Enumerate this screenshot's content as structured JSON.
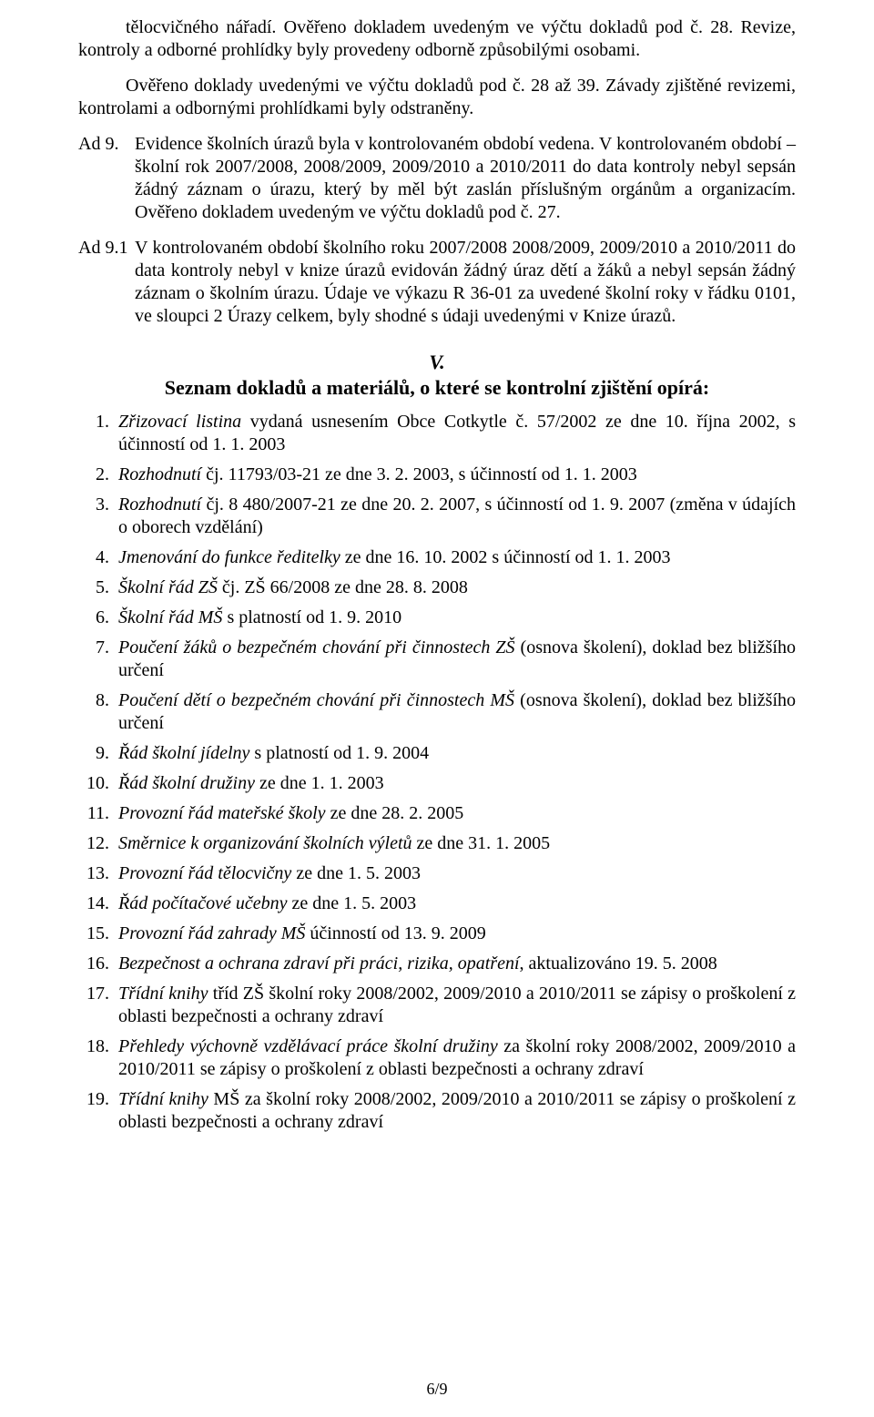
{
  "intro": {
    "p1": "tělocvičného nářadí. Ověřeno dokladem uvedeným ve výčtu dokladů pod č. 28. Revize, kontroly a odborné prohlídky byly provedeny odborně způsobilými osobami.",
    "p2": "Ověřeno doklady uvedenými ve výčtu dokladů pod č. 28 až 39. Závady zjištěné revizemi, kontrolami a odbornými prohlídkami byly odstraněny."
  },
  "ad9": {
    "label": "Ad 9.",
    "text": "Evidence školních úrazů byla v kontrolovaném období vedena. V kontrolovaném období – školní rok 2007/2008, 2008/2009, 2009/2010 a 2010/2011 do data kontroly nebyl sepsán žádný záznam o úrazu, který by měl být zaslán příslušným orgánům a organizacím. Ověřeno dokladem uvedeným ve výčtu dokladů pod č. 27."
  },
  "ad91": {
    "label": "Ad 9.1",
    "text": "V kontrolovaném období školního roku 2007/2008 2008/2009, 2009/2010 a 2010/2011 do data kontroly nebyl v knize úrazů evidován žádný úraz dětí a žáků a nebyl sepsán žádný záznam o školním úrazu. Údaje ve výkazu R 36-01 za uvedené školní roky v řádku 0101, ve sloupci 2 Úrazy celkem, byly shodné s údaji uvedenými v Knize úrazů."
  },
  "section": {
    "num": "V.",
    "title": "Seznam dokladů a materiálů, o které se kontrolní zjištění opírá:"
  },
  "list": [
    {
      "n": "1.",
      "italic": "Zřizovací listina",
      "rest": " vydaná usnesením Obce Cotkytle č. 57/2002 ze dne 10. října 2002, s účinností od 1. 1. 2003"
    },
    {
      "n": "2.",
      "italic": "Rozhodnutí",
      "rest": " čj. 11793/03-21 ze dne 3. 2. 2003, s účinností od 1. 1. 2003"
    },
    {
      "n": "3.",
      "italic": "Rozhodnutí",
      "rest": " čj. 8 480/2007-21 ze dne 20. 2. 2007, s účinností od 1. 9. 2007 (změna v údajích o oborech vzdělání)"
    },
    {
      "n": "4.",
      "italic": "Jmenování do funkce ředitelky",
      "rest": " ze dne 16. 10. 2002 s účinností od 1. 1. 2003"
    },
    {
      "n": "5.",
      "italic": "Školní řád ZŠ",
      "rest": " čj. ZŠ 66/2008 ze dne 28. 8. 2008"
    },
    {
      "n": "6.",
      "italic": "Školní řád MŠ",
      "rest": " s platností od 1. 9. 2010"
    },
    {
      "n": "7.",
      "italic": "Poučení žáků o bezpečném chování při činnostech ZŠ",
      "rest": " (osnova školení), doklad bez bližšího určení"
    },
    {
      "n": "8.",
      "italic": "Poučení dětí o bezpečném chování při činnostech MŠ",
      "rest": " (osnova školení), doklad bez bližšího určení"
    },
    {
      "n": "9.",
      "italic": "Řád školní jídelny",
      "rest": " s platností od 1. 9. 2004"
    },
    {
      "n": "10.",
      "italic": "Řád školní družiny",
      "rest": " ze dne 1. 1. 2003"
    },
    {
      "n": "11.",
      "italic": "Provozní řád mateřské školy",
      "rest": " ze dne 28. 2. 2005"
    },
    {
      "n": "12.",
      "italic": "Směrnice k organizování školních výletů",
      "rest": " ze dne 31. 1. 2005"
    },
    {
      "n": "13.",
      "italic": "Provozní řád tělocvičny",
      "rest": " ze dne 1. 5. 2003"
    },
    {
      "n": "14.",
      "italic": "Řád počítačové učebny",
      "rest": " ze dne 1. 5. 2003"
    },
    {
      "n": "15.",
      "italic": "Provozní řád zahrady MŠ",
      "rest": " účinností od 13. 9. 2009"
    },
    {
      "n": "16.",
      "italic": "Bezpečnost a ochrana zdraví při práci, rizika, opatření",
      "rest": ", aktualizováno 19. 5. 2008"
    },
    {
      "n": "17.",
      "italic": "Třídní knihy",
      "rest": " tříd ZŠ školní roky 2008/2002, 2009/2010 a 2010/2011 se zápisy o proškolení z oblasti bezpečnosti a ochrany zdraví"
    },
    {
      "n": "18.",
      "italic": "Přehledy výchovně vzdělávací práce školní družiny",
      "rest": " za školní roky 2008/2002, 2009/2010 a 2010/2011 se zápisy o proškolení z oblasti bezpečnosti a ochrany zdraví"
    },
    {
      "n": "19.",
      "italic": "Třídní knihy",
      "rest": " MŠ za školní roky 2008/2002, 2009/2010 a 2010/2011 se zápisy o proškolení z oblasti bezpečnosti a ochrany zdraví"
    }
  ],
  "footer": "6/9"
}
